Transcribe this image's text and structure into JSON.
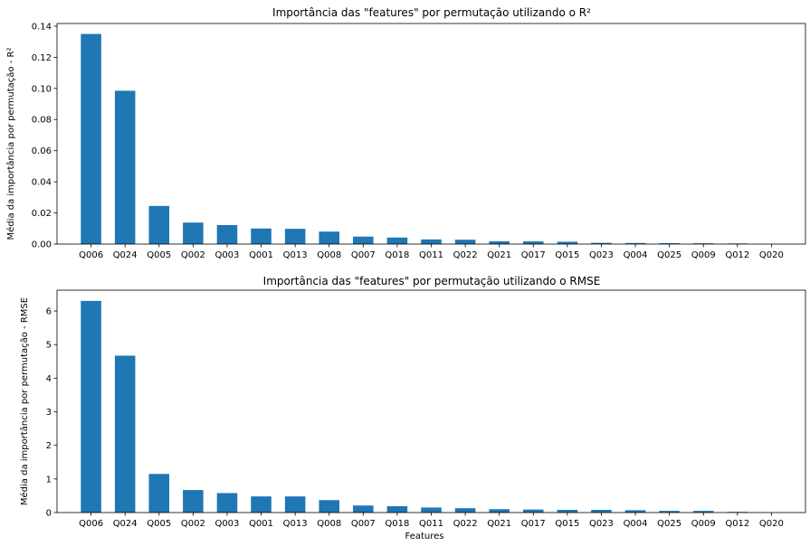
{
  "chart_data": [
    {
      "type": "bar",
      "title": "Importância das \"features\" por permutação utilizando o R²",
      "xlabel": "",
      "ylabel": "Média da importância por permutação - R²",
      "categories": [
        "Q006",
        "Q024",
        "Q005",
        "Q002",
        "Q003",
        "Q001",
        "Q013",
        "Q008",
        "Q007",
        "Q018",
        "Q011",
        "Q022",
        "Q021",
        "Q017",
        "Q015",
        "Q023",
        "Q004",
        "Q025",
        "Q009",
        "Q012",
        "Q020"
      ],
      "values": [
        0.135,
        0.0985,
        0.0245,
        0.0138,
        0.0122,
        0.01,
        0.0098,
        0.008,
        0.0048,
        0.0042,
        0.003,
        0.0028,
        0.0018,
        0.0017,
        0.0015,
        0.0008,
        0.0007,
        0.0006,
        0.0005,
        0.0004,
        0.0
      ],
      "ylim": [
        0,
        0.1417
      ],
      "yticks": [
        0.0,
        0.02,
        0.04,
        0.06,
        0.08,
        0.1,
        0.12,
        0.14
      ],
      "ytick_labels": [
        "0.00",
        "0.02",
        "0.04",
        "0.06",
        "0.08",
        "0.10",
        "0.12",
        "0.14"
      ],
      "bar_color": "#1f77b4",
      "grid": false,
      "legend": "none"
    },
    {
      "type": "bar",
      "title": "Importância das \"features\" por permutação utilizando o RMSE",
      "xlabel": "Features",
      "ylabel": "Média da importância por permutação - RMSE",
      "categories": [
        "Q006",
        "Q024",
        "Q005",
        "Q002",
        "Q003",
        "Q001",
        "Q013",
        "Q008",
        "Q007",
        "Q018",
        "Q011",
        "Q022",
        "Q021",
        "Q017",
        "Q015",
        "Q023",
        "Q004",
        "Q025",
        "Q009",
        "Q012",
        "Q020"
      ],
      "values": [
        6.3,
        4.67,
        1.15,
        0.67,
        0.58,
        0.48,
        0.48,
        0.37,
        0.21,
        0.19,
        0.15,
        0.13,
        0.1,
        0.09,
        0.08,
        0.08,
        0.07,
        0.05,
        0.05,
        0.02,
        0.0
      ],
      "ylim": [
        0,
        6.62
      ],
      "yticks": [
        0,
        1,
        2,
        3,
        4,
        5,
        6
      ],
      "ytick_labels": [
        "0",
        "1",
        "2",
        "3",
        "4",
        "5",
        "6"
      ],
      "bar_color": "#1f77b4",
      "grid": false,
      "legend": "none"
    }
  ]
}
